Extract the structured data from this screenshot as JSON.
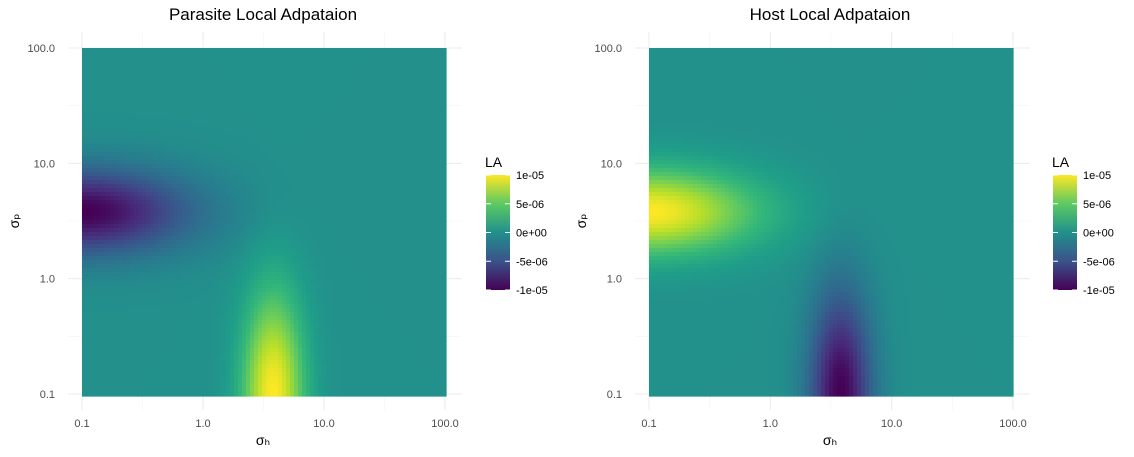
{
  "chart_data": [
    {
      "type": "heatmap",
      "title": "Parasite Local Adpataion",
      "xlabel": "σₕ",
      "ylabel": "σₚ",
      "x_scale": "log10",
      "y_scale": "log10",
      "xlim": [
        0.1,
        100
      ],
      "ylim": [
        0.1,
        100
      ],
      "x_ticks": [
        "0.1",
        "1.0",
        "10.0",
        "100.0"
      ],
      "y_ticks": [
        "0.1",
        "1.0",
        "10.0",
        "100.0"
      ],
      "legend": {
        "title": "LA",
        "placement": "right",
        "ticks": [
          "1e-05",
          "5e-06",
          "0e+00",
          "-5e-06",
          "-1e-05"
        ],
        "range": [
          -1e-05,
          1e-05
        ]
      },
      "field": {
        "description_of_peaks": [
          {
            "sigma_h": 0.1,
            "sigma_p": 3.8,
            "value": -1e-05
          },
          {
            "sigma_h": 3.8,
            "sigma_p": 0.1,
            "value": 1e-05
          }
        ]
      },
      "colors": [
        "#440154",
        "#3b528b",
        "#21908c",
        "#5dc963",
        "#fde725"
      ]
    },
    {
      "type": "heatmap",
      "title": "Host Local Adpataion",
      "xlabel": "σₕ",
      "ylabel": "σₚ",
      "x_scale": "log10",
      "y_scale": "log10",
      "xlim": [
        0.1,
        100
      ],
      "ylim": [
        0.1,
        100
      ],
      "x_ticks": [
        "0.1",
        "1.0",
        "10.0",
        "100.0"
      ],
      "y_ticks": [
        "0.1",
        "1.0",
        "10.0",
        "100.0"
      ],
      "legend": {
        "title": "LA",
        "placement": "right",
        "ticks": [
          "1e-05",
          "5e-06",
          "0e+00",
          "-5e-06",
          "-1e-05"
        ],
        "range": [
          -1e-05,
          1e-05
        ]
      },
      "field": {
        "description_of_peaks": [
          {
            "sigma_h": 0.1,
            "sigma_p": 3.8,
            "value": 1e-05
          },
          {
            "sigma_h": 3.8,
            "sigma_p": 0.1,
            "value": -1e-05
          }
        ]
      },
      "colors": [
        "#440154",
        "#3b528b",
        "#21908c",
        "#5dc963",
        "#fde725"
      ]
    }
  ]
}
